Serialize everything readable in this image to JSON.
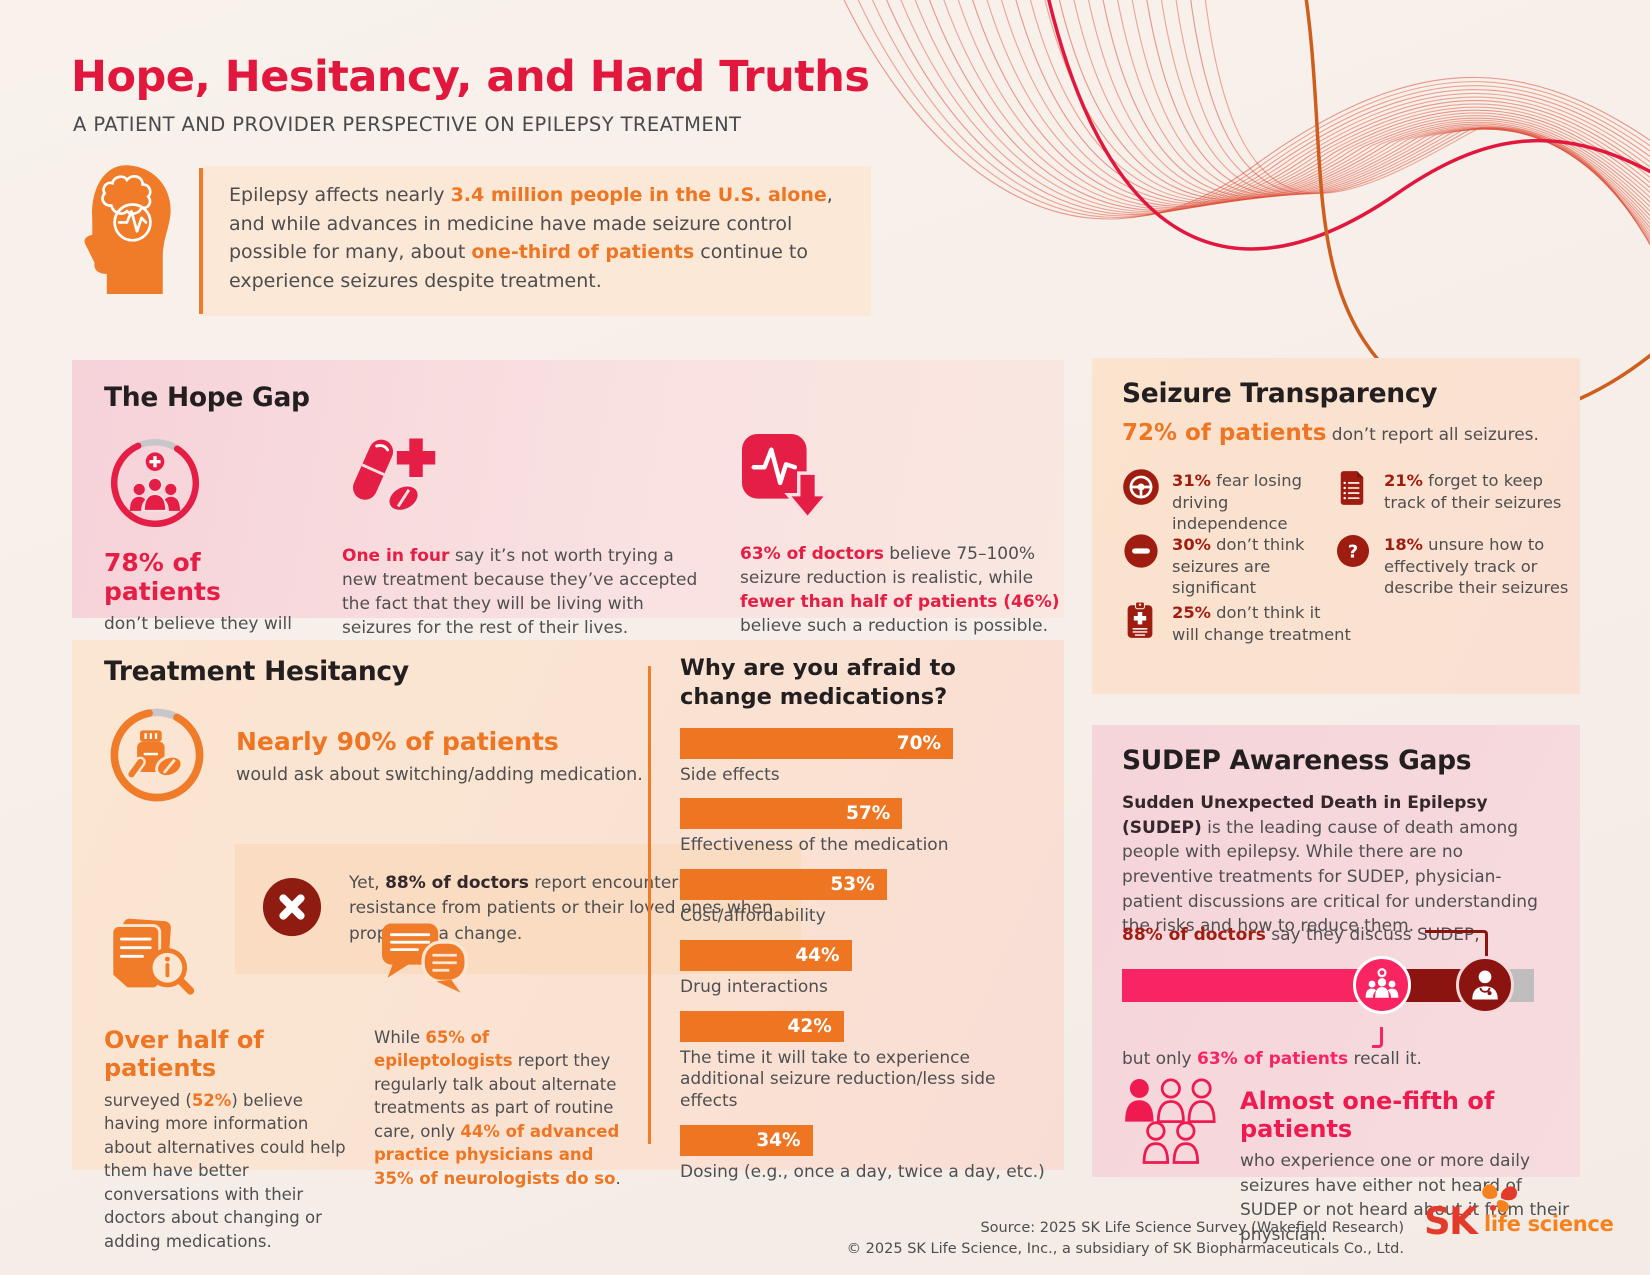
{
  "colors": {
    "title_red": "#E2173D",
    "accent_red": "#E41E44",
    "orange": "#EE7623",
    "maroon": "#9E1D10",
    "dark_maroon": "#8B1410",
    "pink": "#F92563",
    "bright_pink_red": "#EE1A50",
    "text_dark": "#231F20",
    "text_gray": "#4F4F51",
    "bar_track_gray": "#BFBDBE"
  },
  "header": {
    "title": "Hope, Hesitancy, and Hard Truths",
    "subtitle": "A PATIENT AND PROVIDER PERSPECTIVE ON EPILEPSY TREATMENT"
  },
  "intro": {
    "text": [
      {
        "t": "Epilepsy affects nearly "
      },
      {
        "t": "3.4 million people in the U.S. alone",
        "em": "orange"
      },
      {
        "t": ", and while advances in medicine have made seizure control possible for many, about "
      },
      {
        "t": "one-third of patients",
        "em": "orange"
      },
      {
        "t": " continue to experience seizures despite treatment."
      }
    ]
  },
  "hope_gap": {
    "heading": "The Hope Gap",
    "stat1": {
      "value": "78% of patients",
      "body": "don’t believe they will ever be seizure-free."
    },
    "stat2": {
      "text": [
        {
          "t": "One in four",
          "em": "red"
        },
        {
          "t": " say it’s not worth trying a new treatment because they’ve accepted the fact that they will be living with seizures for the rest of their lives."
        }
      ]
    },
    "stat3": {
      "text": [
        {
          "t": "63% of doctors",
          "em": "red"
        },
        {
          "t": " believe 75–100% seizure reduction is realistic, while "
        },
        {
          "t": "fewer than half of patients (46%)",
          "em": "red"
        },
        {
          "t": " believe such a reduction is possible."
        }
      ]
    }
  },
  "treatment": {
    "heading": "Treatment Hesitancy",
    "lead": {
      "title": "Nearly 90% of patients",
      "body": "would ask about switching/adding medication."
    },
    "callout": {
      "text": [
        {
          "t": "Yet, "
        },
        {
          "t": "88% of doctors",
          "em": "darkbold"
        },
        {
          "t": " report encountering resistance from patients or their loved ones when proposing a change."
        }
      ]
    },
    "col1": {
      "title": "Over half of patients",
      "text": [
        {
          "t": "surveyed ("
        },
        {
          "t": "52%",
          "em": "orange"
        },
        {
          "t": ") believe having more information about alternatives could help them have better conversations with their doctors about changing or adding medications."
        }
      ]
    },
    "col2": {
      "text": [
        {
          "t": "While "
        },
        {
          "t": "65% of epileptologists",
          "em": "orange"
        },
        {
          "t": " report they regularly talk about alternate treatments as part of routine care, only "
        },
        {
          "t": "44% of advanced practice physicians and 35% of neurologists do so",
          "em": "orange"
        },
        {
          "t": "."
        }
      ]
    }
  },
  "chart_data": {
    "type": "bar",
    "orientation": "horizontal",
    "title": "Why are you afraid to change medications?",
    "categories": [
      "Side effects",
      "Effectiveness of the medication",
      "Cost/affordability",
      "Drug interactions",
      "The time it will take to experience additional seizure reduction/less side effects",
      "Dosing (e.g., once a day, twice a day, etc.)"
    ],
    "values": [
      70,
      57,
      53,
      44,
      42,
      34
    ],
    "unit": "%",
    "xlim": [
      0,
      100
    ],
    "bar_color": "#EE7623",
    "value_label_position": "inside-end",
    "grid": false
  },
  "seizure": {
    "heading": "Seizure Transparency",
    "lead": [
      {
        "t": "72% of patients",
        "em": "orange-lg"
      },
      {
        "t": " don’t report all seizures."
      }
    ],
    "items": [
      {
        "icon": "steering-wheel-icon",
        "pct": "31%",
        "text": " fear losing driving independence"
      },
      {
        "icon": "seizure-log-icon",
        "pct": "21%",
        "text": " forget to keep track of their seizures"
      },
      {
        "icon": "minus-circle-icon",
        "pct": "30%",
        "text": " don’t think seizures are significant"
      },
      {
        "icon": "question-circle-icon",
        "pct": "18%",
        "text": " unsure how to effectively track or describe their seizures"
      },
      {
        "icon": "clipboard-cross-icon",
        "pct": "25%",
        "text": " don’t think it will change treatment"
      }
    ]
  },
  "sudep": {
    "heading": "SUDEP Awareness Gaps",
    "intro": [
      {
        "t": "Sudden Unexpected Death in Epilepsy (SUDEP)",
        "em": "darkbold"
      },
      {
        "t": " is the leading cause of death among people with epilepsy. While there are no preventive treatments for SUDEP, physician-patient discussions are critical for understanding the risks and how to reduce them."
      }
    ],
    "doctors_line": [
      {
        "t": "88% of doctors",
        "em": "maroon"
      },
      {
        "t": " say they discuss SUDEP,"
      }
    ],
    "patients_line": [
      {
        "t": "but only "
      },
      {
        "t": "63% of patients",
        "em": "pink"
      },
      {
        "t": " recall it."
      }
    ],
    "bar": {
      "patients_pct": 63,
      "doctors_pct": 88,
      "patients_color": "#F92563",
      "doctors_color": "#8B1410",
      "track_color": "#BFBDBE"
    },
    "footnote": {
      "title": "Almost one-fifth of patients",
      "body": "who experience one or more daily seizures have either not heard of SUDEP or not heard about it from their physician."
    }
  },
  "footer": {
    "source_line1": "Source: 2025 SK Life Science Survey (Wakefield Research)",
    "source_line2": "© 2025 SK Life Science, Inc., a subsidiary of SK Biopharmaceuticals Co., Ltd.",
    "logo": {
      "sk": "SK",
      "text": "life science"
    }
  }
}
